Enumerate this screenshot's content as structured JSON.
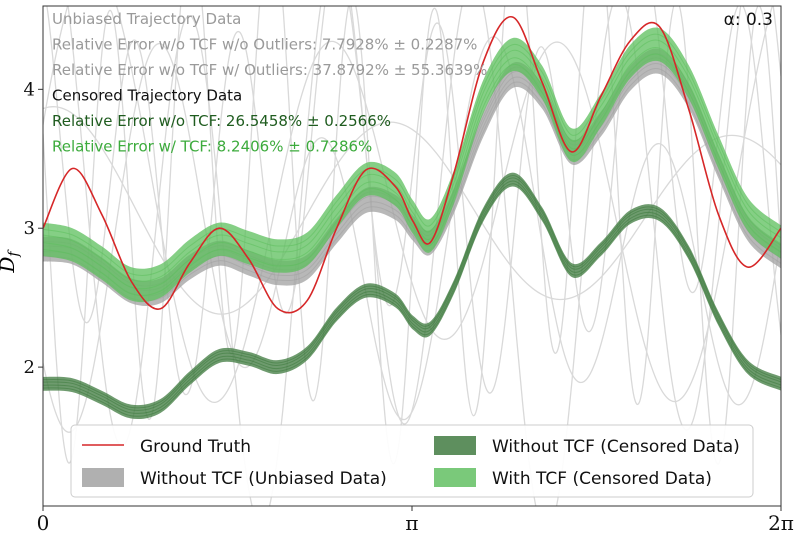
{
  "chart_data": {
    "type": "line",
    "ylabel": "D_f",
    "ylabel_main": "D",
    "ylabel_sub": "f",
    "xlim": [
      0,
      6.283185
    ],
    "ylim": [
      1.0,
      4.6
    ],
    "x_ticks": [
      {
        "value": 0,
        "label": "0"
      },
      {
        "value": 3.141593,
        "label": "π"
      },
      {
        "value": 6.283185,
        "label": "2π"
      }
    ],
    "y_ticks": [
      {
        "value": 2,
        "label": "2"
      },
      {
        "value": 3,
        "label": "3"
      },
      {
        "value": 4,
        "label": "4"
      }
    ],
    "corner_label": "α: 0.3",
    "annotations": [
      {
        "text": "Unbiased Trajectory Data",
        "color": "#9a9a9a"
      },
      {
        "text": "Relative Error w/o TCF w/o Outliers: 7.7928% ± 0.2287%",
        "color": "#9a9a9a"
      },
      {
        "text": "Relative Error w/o TCF w/   Outliers: 37.8792% ± 55.3639%",
        "color": "#9a9a9a"
      },
      {
        "text": "Censored Trajectory Data",
        "color": "#111111"
      },
      {
        "text": "Relative Error w/o TCF: 26.5458% ± 0.2566%",
        "color": "#1f5c1f"
      },
      {
        "text": "Relative Error w/   TCF: 8.2406% ± 0.7286%",
        "color": "#3cab3c"
      }
    ],
    "series": [
      {
        "name": "Ground Truth",
        "style": "line",
        "color": "#d62728",
        "x": [
          0,
          0.25,
          0.5,
          0.75,
          1.0,
          1.25,
          1.5,
          1.75,
          2.0,
          2.25,
          2.5,
          2.75,
          3.0,
          3.15,
          3.3,
          3.5,
          3.75,
          4.0,
          4.25,
          4.5,
          4.75,
          5.0,
          5.25,
          5.5,
          5.75,
          6.0,
          6.283185
        ],
        "values": [
          3.0,
          3.43,
          3.1,
          2.62,
          2.42,
          2.75,
          3.0,
          2.78,
          2.42,
          2.48,
          3.0,
          3.42,
          3.3,
          3.05,
          2.9,
          3.4,
          4.2,
          4.52,
          4.05,
          3.55,
          3.95,
          4.35,
          4.45,
          3.85,
          3.1,
          2.72,
          3.0
        ]
      },
      {
        "name": "Without TCF (Unbiased Data)",
        "style": "band",
        "color": "#a0a0a0",
        "x": [
          0,
          0.25,
          0.5,
          0.75,
          1.0,
          1.25,
          1.5,
          1.75,
          2.0,
          2.25,
          2.5,
          2.75,
          3.0,
          3.15,
          3.3,
          3.5,
          3.75,
          4.0,
          4.25,
          4.5,
          4.75,
          5.0,
          5.25,
          5.5,
          5.75,
          6.0,
          6.283185
        ],
        "values": [
          2.85,
          2.83,
          2.7,
          2.55,
          2.55,
          2.72,
          2.82,
          2.75,
          2.68,
          2.72,
          2.98,
          3.2,
          3.15,
          3.0,
          2.9,
          3.2,
          3.75,
          4.1,
          3.95,
          3.55,
          3.75,
          4.08,
          4.2,
          3.95,
          3.45,
          3.0,
          2.8
        ],
        "band_halfwidth": 0.09
      },
      {
        "name": "Without TCF (Censored Data)",
        "style": "band",
        "color": "#3d7a3d",
        "x": [
          0,
          0.25,
          0.5,
          0.75,
          1.0,
          1.25,
          1.5,
          1.75,
          2.0,
          2.25,
          2.5,
          2.75,
          3.0,
          3.15,
          3.3,
          3.5,
          3.75,
          4.0,
          4.25,
          4.5,
          4.75,
          5.0,
          5.25,
          5.5,
          5.75,
          6.0,
          6.283185
        ],
        "values": [
          1.88,
          1.87,
          1.78,
          1.68,
          1.72,
          1.92,
          2.08,
          2.06,
          2.0,
          2.1,
          2.38,
          2.55,
          2.48,
          2.32,
          2.28,
          2.58,
          3.1,
          3.35,
          3.1,
          2.7,
          2.85,
          3.08,
          3.1,
          2.82,
          2.35,
          2.0,
          1.88
        ],
        "band_halfwidth": 0.05
      },
      {
        "name": "With TCF (Censored Data)",
        "style": "band",
        "color": "#5cbf5c",
        "x": [
          0,
          0.25,
          0.5,
          0.75,
          1.0,
          1.25,
          1.5,
          1.75,
          2.0,
          2.25,
          2.5,
          2.75,
          3.0,
          3.15,
          3.3,
          3.5,
          3.75,
          4.0,
          4.25,
          4.5,
          4.75,
          5.0,
          5.25,
          5.5,
          5.75,
          6.0,
          6.283185
        ],
        "values": [
          2.92,
          2.88,
          2.75,
          2.6,
          2.62,
          2.8,
          2.92,
          2.86,
          2.8,
          2.85,
          3.12,
          3.35,
          3.28,
          3.08,
          2.95,
          3.3,
          3.95,
          4.25,
          4.05,
          3.6,
          3.85,
          4.2,
          4.32,
          4.05,
          3.55,
          3.1,
          2.9
        ],
        "band_halfwidth": 0.12
      }
    ],
    "legend": {
      "location": "lower center",
      "entries": [
        {
          "label": "Ground Truth",
          "kind": "line",
          "color": "#d62728"
        },
        {
          "label": "Without TCF (Censored Data)",
          "kind": "patch",
          "color": "#5e8f5e"
        },
        {
          "label": "Without TCF (Unbiased Data)",
          "kind": "patch",
          "color": "#b0b0b0"
        },
        {
          "label": "With TCF (Censored Data)",
          "kind": "patch",
          "color": "#7ac97a"
        }
      ]
    }
  }
}
